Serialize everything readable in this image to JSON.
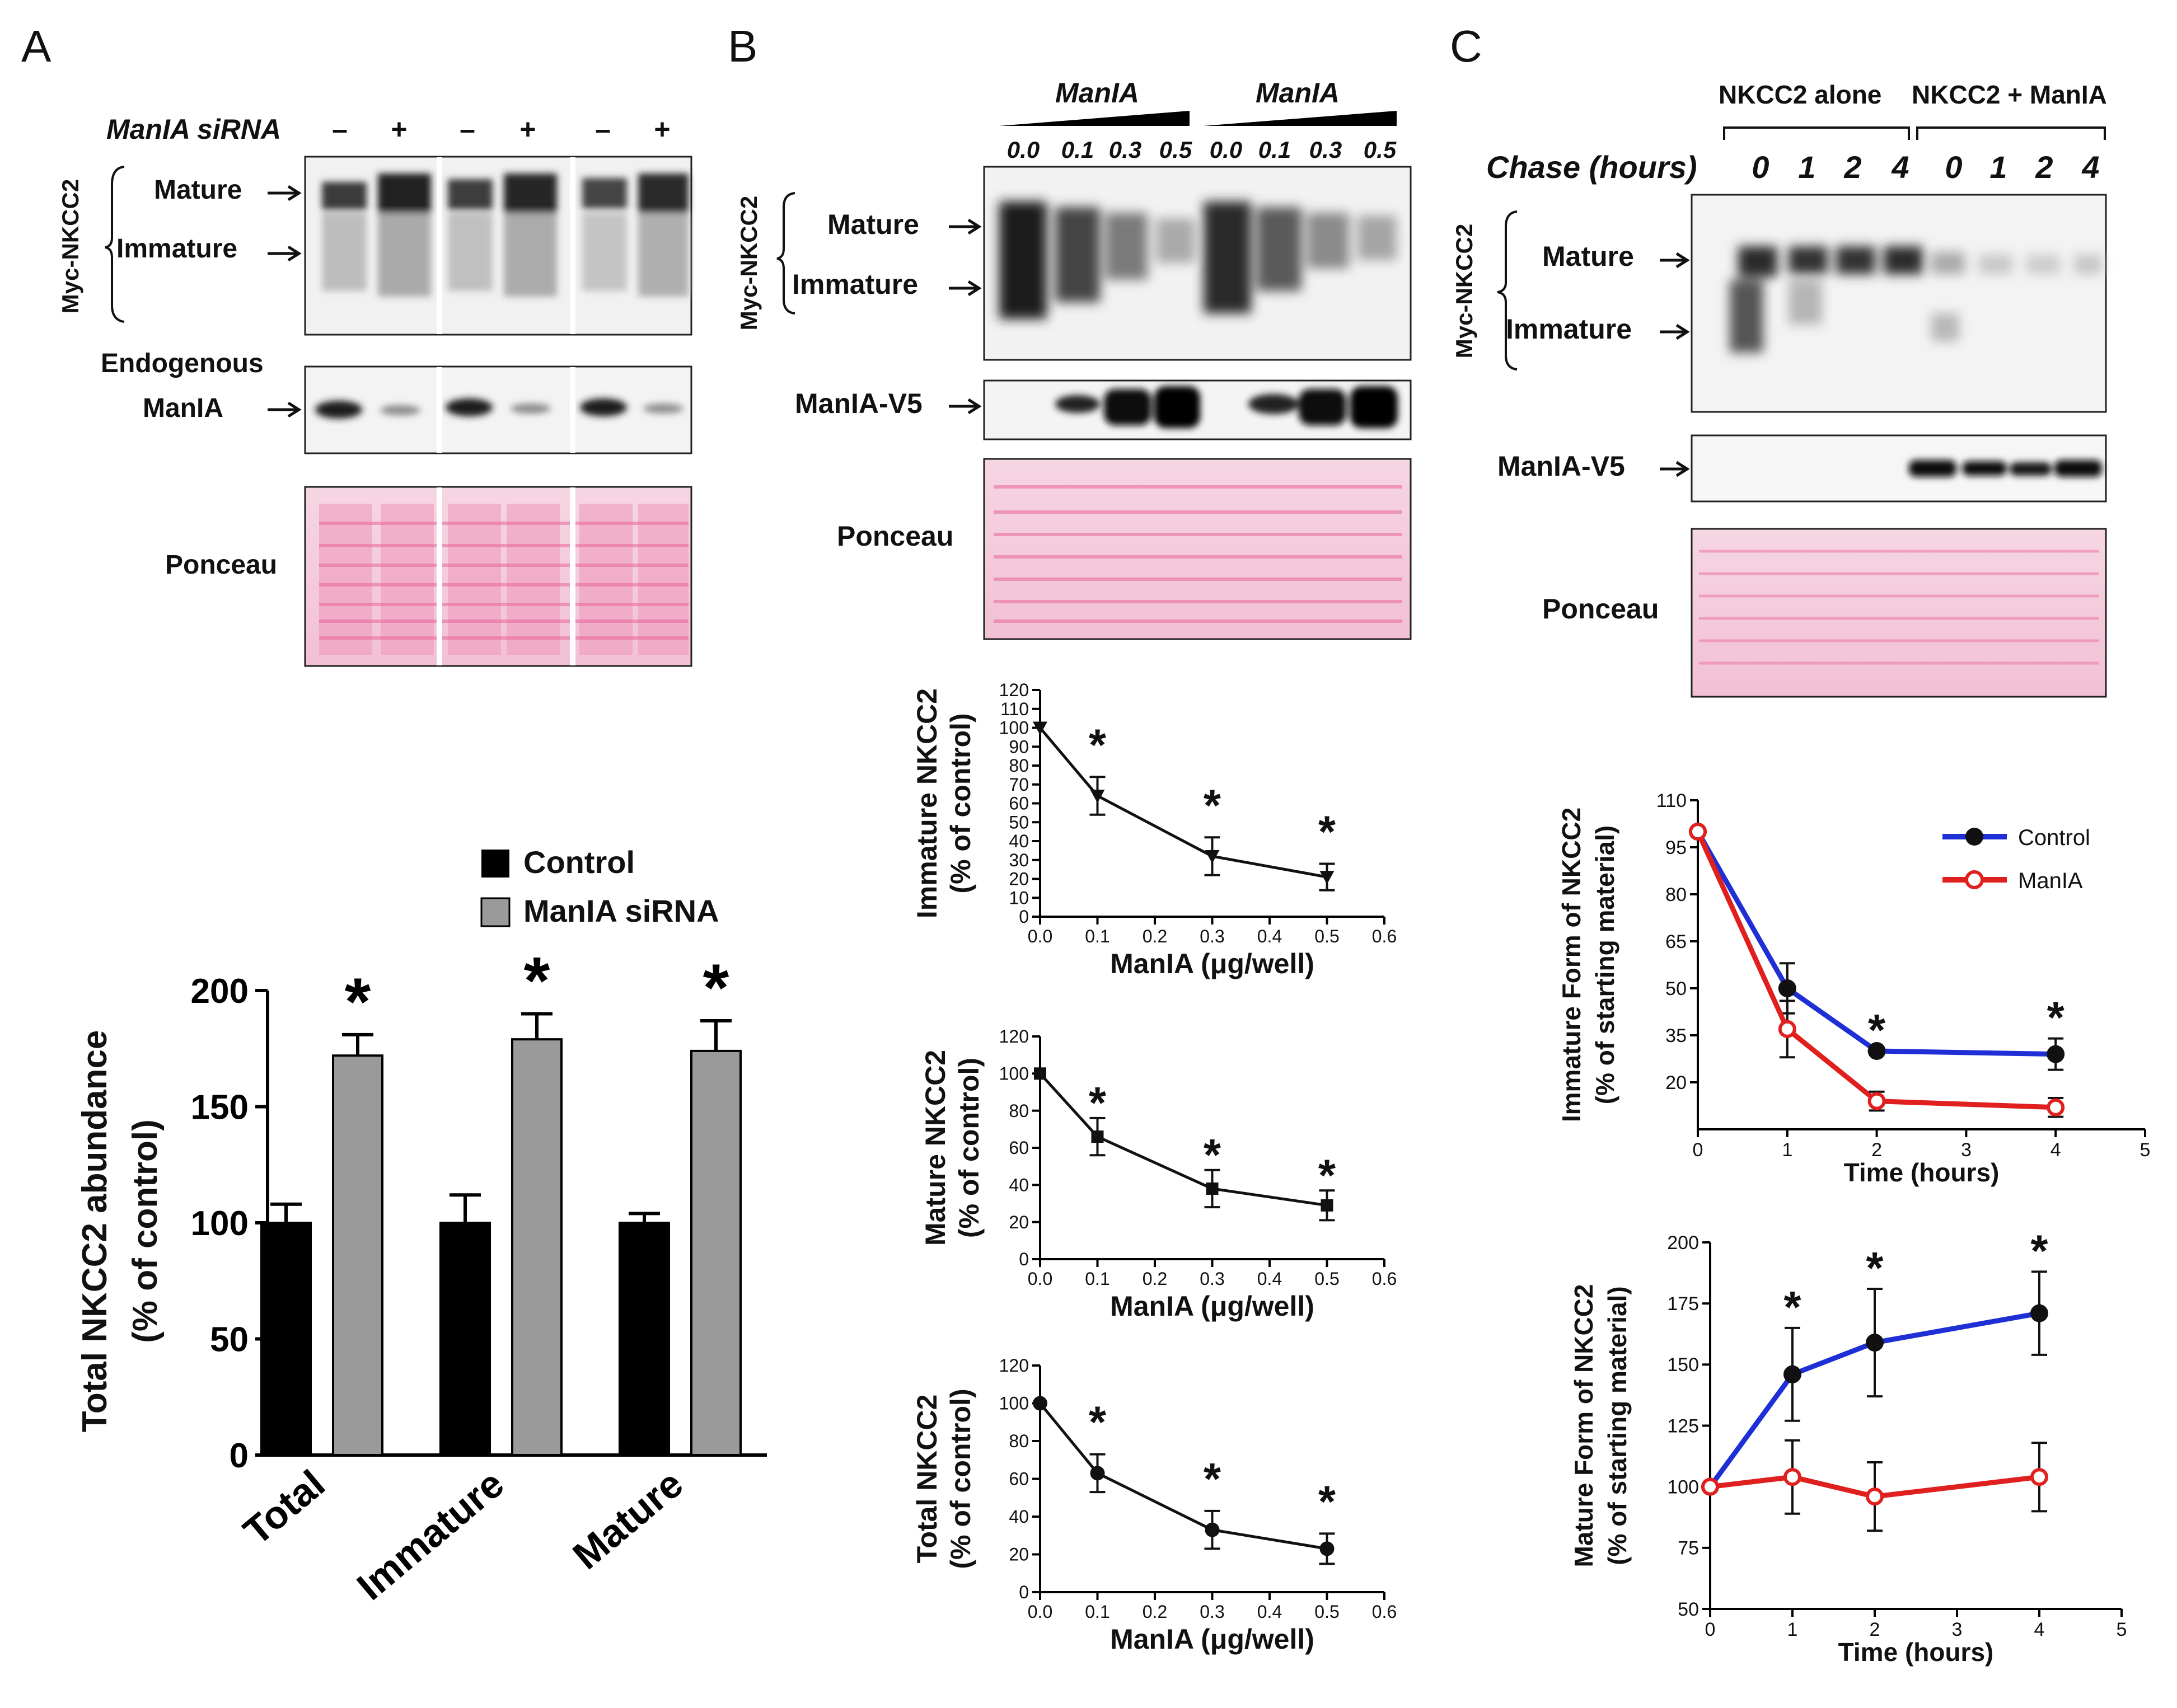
{
  "panel_labels": {
    "a": "A",
    "b": "B",
    "c": "C"
  },
  "common": {
    "myc_nkcc2": "Myc-NKCC2",
    "mature": "Mature",
    "immature": "Immature",
    "ponceau": "Ponceau",
    "manla_v5": "ManIA-V5",
    "minus": "–",
    "plus": "+",
    "manla": "ManIA"
  },
  "panel_a": {
    "sirna_label": "ManIA siRNA",
    "lane_signs": [
      "–",
      "+",
      "–",
      "+",
      "–",
      "+"
    ],
    "endogenous_line1": "Endogenous",
    "endogenous_line2": "ManIA"
  },
  "panel_b": {
    "doses": [
      "0.0",
      "0.1",
      "0.3",
      "0.5",
      "0.0",
      "0.1",
      "0.3",
      "0.5"
    ]
  },
  "panel_c": {
    "chase_label": "Chase (hours)",
    "group1": "NKCC2 alone",
    "group2": "NKCC2 + ManIA",
    "chase_times": [
      "0",
      "1",
      "2",
      "4",
      "0",
      "1",
      "2",
      "4"
    ]
  },
  "colors": {
    "control_line": "#1f2fd6",
    "manla_line": "#e0201e",
    "ponceau": "#e9679a",
    "gray_bar": "#9a9a9a"
  },
  "chart_data": [
    {
      "id": "A_bar",
      "type": "bar",
      "categories": [
        "Total",
        "Immature",
        "Mature"
      ],
      "series": [
        {
          "name": "Control",
          "values": [
            100,
            100,
            100
          ],
          "errors": [
            8,
            12,
            4
          ]
        },
        {
          "name": "ManIA siRNA",
          "values": [
            172,
            179,
            174
          ],
          "errors": [
            9,
            11,
            13
          ]
        }
      ],
      "significance": [
        "*",
        "*",
        "*"
      ],
      "ylabel_line1": "Total NKCC2 abundance",
      "ylabel_line2": "(% of control)",
      "ylim": [
        0,
        200
      ],
      "yticks": [
        "0",
        "50",
        "100",
        "150",
        "200"
      ],
      "legend": [
        "Control",
        "ManIA siRNA"
      ]
    },
    {
      "id": "B_immature",
      "type": "line",
      "marker": "triangle",
      "x": [
        0.0,
        0.1,
        0.3,
        0.5
      ],
      "y": [
        100,
        64,
        32,
        21
      ],
      "err": [
        0,
        10,
        10,
        7
      ],
      "stars": [
        1,
        2,
        3
      ],
      "xlim": [
        0,
        0.6
      ],
      "ylim": [
        0,
        120
      ],
      "xticks": [
        "0.0",
        "0.1",
        "0.2",
        "0.3",
        "0.4",
        "0.5",
        "0.6"
      ],
      "yticks": [
        "0",
        "10",
        "20",
        "30",
        "40",
        "50",
        "60",
        "70",
        "80",
        "90",
        "100",
        "110",
        "120"
      ],
      "ylabel_line1": "Immature NKCC2",
      "ylabel_line2": "(% of control)",
      "xlabel": "ManIA (μg/well)"
    },
    {
      "id": "B_mature",
      "type": "line",
      "marker": "square",
      "x": [
        0.0,
        0.1,
        0.3,
        0.5
      ],
      "y": [
        100,
        66,
        38,
        29
      ],
      "err": [
        0,
        10,
        10,
        8
      ],
      "stars": [
        1,
        2,
        3
      ],
      "xlim": [
        0,
        0.6
      ],
      "ylim": [
        0,
        120
      ],
      "xticks": [
        "0.0",
        "0.1",
        "0.2",
        "0.3",
        "0.4",
        "0.5",
        "0.6"
      ],
      "yticks": [
        "0",
        "20",
        "40",
        "60",
        "80",
        "100",
        "120"
      ],
      "ylabel_line1": "Mature NKCC2",
      "ylabel_line2": "(% of control)",
      "xlabel": "ManIA (μg/well)"
    },
    {
      "id": "B_total",
      "type": "line",
      "marker": "circle",
      "x": [
        0.0,
        0.1,
        0.3,
        0.5
      ],
      "y": [
        100,
        63,
        33,
        23
      ],
      "err": [
        0,
        10,
        10,
        8
      ],
      "stars": [
        1,
        2,
        3
      ],
      "xlim": [
        0,
        0.6
      ],
      "ylim": [
        0,
        120
      ],
      "xticks": [
        "0.0",
        "0.1",
        "0.2",
        "0.3",
        "0.4",
        "0.5",
        "0.6"
      ],
      "yticks": [
        "0",
        "20",
        "40",
        "60",
        "80",
        "100",
        "120"
      ],
      "ylabel_line1": "Total NKCC2",
      "ylabel_line2": "(% of control)",
      "xlabel": "ManIA (μg/well)"
    },
    {
      "id": "C_immature",
      "type": "line",
      "x": [
        0,
        1,
        2,
        4
      ],
      "series": [
        {
          "name": "Control",
          "y": [
            100,
            50,
            30,
            29
          ],
          "err": [
            0,
            8,
            0,
            5
          ],
          "marker": "filled"
        },
        {
          "name": "ManIA",
          "y": [
            100,
            37,
            14,
            12
          ],
          "err": [
            0,
            9,
            3,
            3
          ],
          "marker": "open"
        }
      ],
      "stars": [
        2,
        3
      ],
      "xlim": [
        0,
        5
      ],
      "ylim": [
        5,
        110
      ],
      "xticks": [
        "0",
        "1",
        "2",
        "3",
        "4",
        "5"
      ],
      "yticks": [
        "20",
        "35",
        "50",
        "65",
        "80",
        "95",
        "110"
      ],
      "ylabel_line1": "Immature Form of NKCC2",
      "ylabel_line2": "(% of starting material)",
      "xlabel": "Time (hours)",
      "legend": [
        "Control",
        "ManIA"
      ]
    },
    {
      "id": "C_mature",
      "type": "line",
      "x": [
        0,
        1,
        2,
        4
      ],
      "series": [
        {
          "name": "Control",
          "y": [
            100,
            146,
            159,
            171
          ],
          "err": [
            0,
            19,
            22,
            17
          ],
          "marker": "filled"
        },
        {
          "name": "ManIA",
          "y": [
            100,
            104,
            96,
            104
          ],
          "err": [
            0,
            15,
            14,
            14
          ],
          "marker": "open"
        }
      ],
      "stars": [
        1,
        2,
        3
      ],
      "xlim": [
        0,
        5
      ],
      "ylim": [
        50,
        200
      ],
      "xticks": [
        "0",
        "1",
        "2",
        "3",
        "4",
        "5"
      ],
      "yticks": [
        "50",
        "75",
        "100",
        "125",
        "150",
        "175",
        "200"
      ],
      "ylabel_line1": "Mature Form of NKCC2",
      "ylabel_line2": "(% of starting material)",
      "xlabel": "Time (hours)"
    }
  ]
}
